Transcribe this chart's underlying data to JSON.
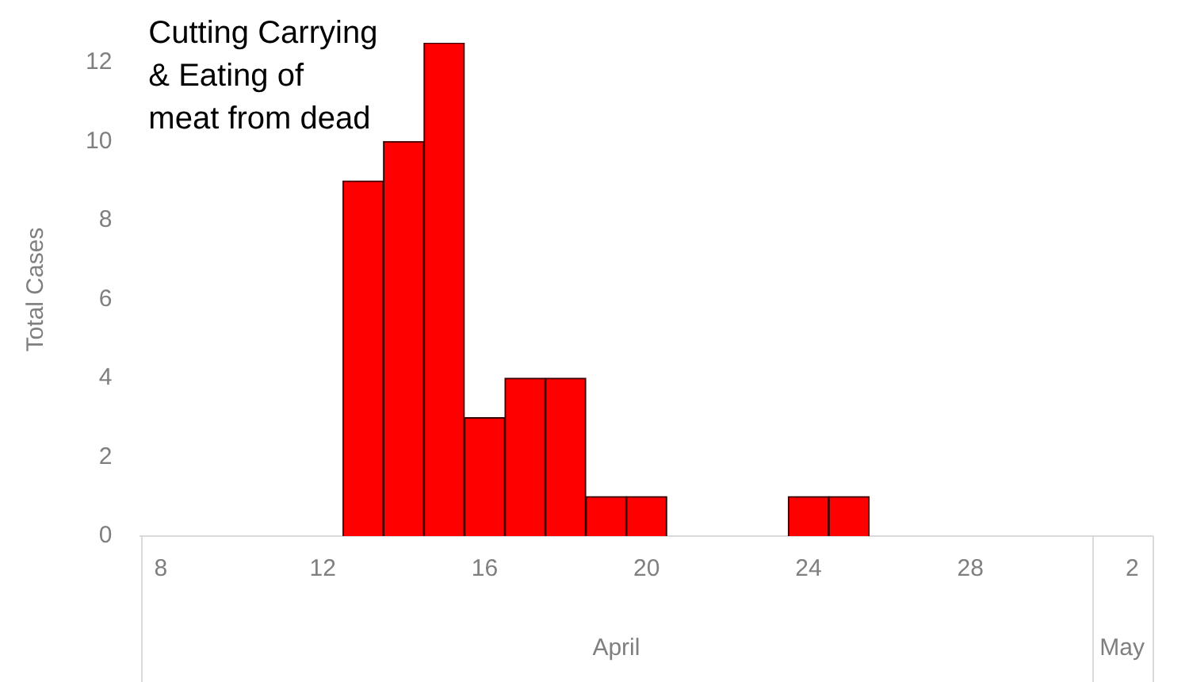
{
  "chart_data": {
    "type": "bar",
    "ylabel": "Total Cases",
    "x": [
      "--04-13",
      "--04-14",
      "--04-15",
      "--04-16",
      "--04-17",
      "--04-18",
      "--04-19",
      "--04-20",
      "--04-24",
      "--04-25"
    ],
    "values": [
      9,
      10,
      12.5,
      3,
      4,
      4,
      1,
      1,
      1,
      1
    ],
    "color": "#ff0000",
    "xlim": [
      "--04-07T12:00",
      "--05-02T12:00"
    ],
    "xticks": [
      {
        "value": "--04-08",
        "label": "8"
      },
      {
        "value": "--04-12",
        "label": "12"
      },
      {
        "value": "--04-16",
        "label": "16"
      },
      {
        "value": "--04-20",
        "label": "20"
      },
      {
        "value": "--04-24",
        "label": "24"
      },
      {
        "value": "--04-28",
        "label": "28"
      },
      {
        "value": "--05-02",
        "label": "2"
      }
    ],
    "ylim": [
      0,
      12.5
    ],
    "yticks": [
      0,
      2,
      4,
      6,
      8,
      10,
      12
    ],
    "grid": false,
    "legend": false,
    "annotations": [
      "Cutting Carrying & Eating of meat from dead",
      "April",
      "May"
    ]
  }
}
